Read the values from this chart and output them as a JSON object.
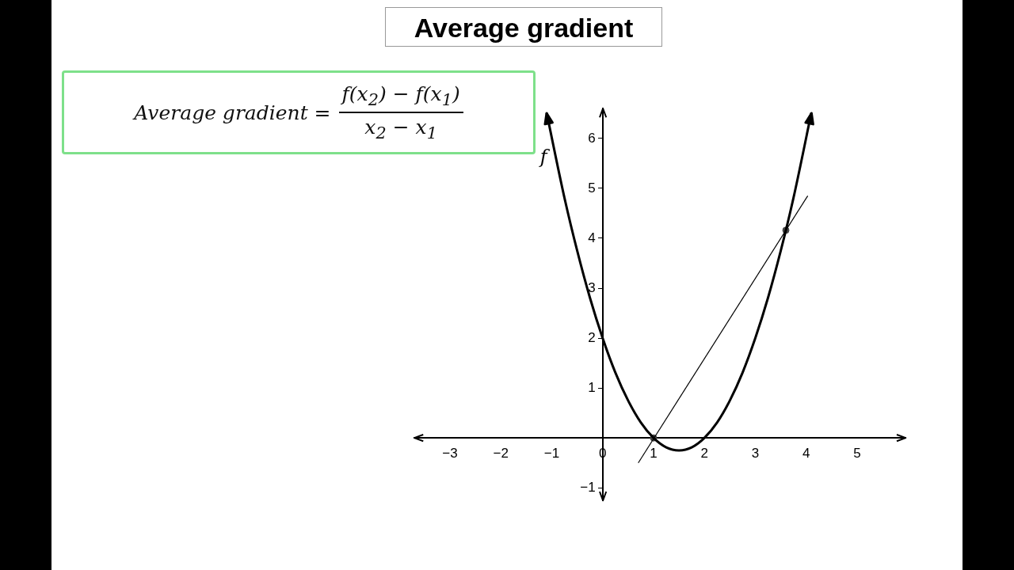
{
  "chart_data": {
    "type": "line",
    "title": "Average gradient",
    "annotations": [
      "Average gradient =",
      "f(x$_{2}$) − f(x$_{1}$)",
      "x$_{2}$ − x$_{1}$"
    ],
    "xlim": [
      -3.7,
      5.95
    ],
    "ylim": [
      -1.25,
      6.6
    ],
    "xticks": [
      {
        "value": -3,
        "label": "−3"
      },
      {
        "value": -2,
        "label": "−2"
      },
      {
        "value": -1,
        "label": "−1"
      },
      0,
      1,
      2,
      3,
      4,
      5
    ],
    "yticks": [
      {
        "value": -1,
        "label": "−1"
      },
      1,
      2,
      3,
      4,
      5,
      6
    ],
    "grid": false,
    "legend": "top left",
    "series": [
      {
        "name": "f",
        "type": "line",
        "color": "#000000",
        "marker": "none",
        "x": [
          -1.1,
          -0.75,
          -0.5,
          -0.25,
          0,
          0.25,
          0.5,
          0.75,
          1,
          1.25,
          1.5,
          1.75,
          2,
          2.25,
          2.5,
          2.75,
          3,
          3.25,
          3.5,
          3.75,
          4.1
        ],
        "values": [
          6.51,
          4.81,
          3.75,
          2.81,
          2,
          1.31,
          0.75,
          0.31,
          0,
          -0.19,
          -0.25,
          -0.19,
          0,
          0.31,
          0.75,
          1.31,
          2,
          2.81,
          3.75,
          4.81,
          6.51
        ]
      },
      {
        "type": "line",
        "color": "#000000",
        "marker": "none",
        "x": [
          0.7,
          4.03
        ],
        "values": [
          -0.5,
          4.85
        ]
      },
      {
        "type": "scatter",
        "color": "#444444",
        "marker": "circle",
        "x": [
          1,
          3.6
        ],
        "values": [
          0,
          4.16
        ]
      }
    ]
  }
}
